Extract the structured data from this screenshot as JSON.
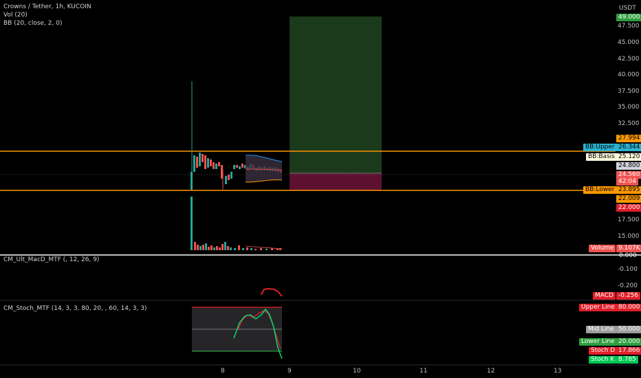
{
  "header": {
    "symbol": "Crowns / Tether, 1h, KUCOIN",
    "vol": "Vol (20)",
    "bb": "BB (20, close, 2, 0)"
  },
  "currency": "USDT",
  "price_axis": {
    "ticks": [
      "47.500",
      "45.000",
      "42.500",
      "40.000",
      "37.500",
      "35.000",
      "32.500",
      "17.500",
      "15.000"
    ]
  },
  "price_tags": {
    "top": "49.000",
    "upper_band": "27.994",
    "bb_upper_label": "BB:Upper",
    "bb_upper": "26.344",
    "bb_basis_label": "BB:Basis",
    "bb_basis": "25.120",
    "p24800": "24.800",
    "current": "24.560",
    "countdown": "42:04",
    "bb_lower_label": "BB:Lower",
    "bb_lower": "23.895",
    "lower_band": "22.009",
    "stop": "22.000",
    "volume_label": "Volume",
    "volume_value": "9.107K"
  },
  "macd_pane": {
    "title": "CM_Ult_MacD_MTF (, 12, 26, 9)",
    "tick_top": "0.000",
    "tick_mid": "-0.100",
    "tick_low": "-0.200",
    "macd_label": "MACD",
    "macd_value": "-0.256"
  },
  "stoch_pane": {
    "title": "CM_Stoch_MTF (14, 3, 3, 80, 20, , 60, 14, 3, 3)",
    "upper_label": "Upper Line",
    "upper_value": "80.000",
    "mid_label": "Mid Line",
    "mid_value": "50.000",
    "lower_label": "Lower Line",
    "lower_value": "20.000",
    "d_label": "Stoch D",
    "d_value": "17.866",
    "k_label": "Stoch K",
    "k_value": "8.785"
  },
  "time_axis": {
    "ticks": [
      "8",
      "9",
      "10",
      "11",
      "12",
      "13"
    ]
  },
  "colors": {
    "background": "#000000",
    "orange": "#ff9800",
    "up": "#26a69a",
    "down": "#ef5350",
    "target_zone": "#1b3a1c",
    "stop_zone": "#5e1030",
    "bb_upper": "#2196f3",
    "bb_basis": "#fff8dc",
    "green_tag": "#2e9e3e",
    "red_tag": "#e0202a",
    "lime": "#00e676"
  }
}
